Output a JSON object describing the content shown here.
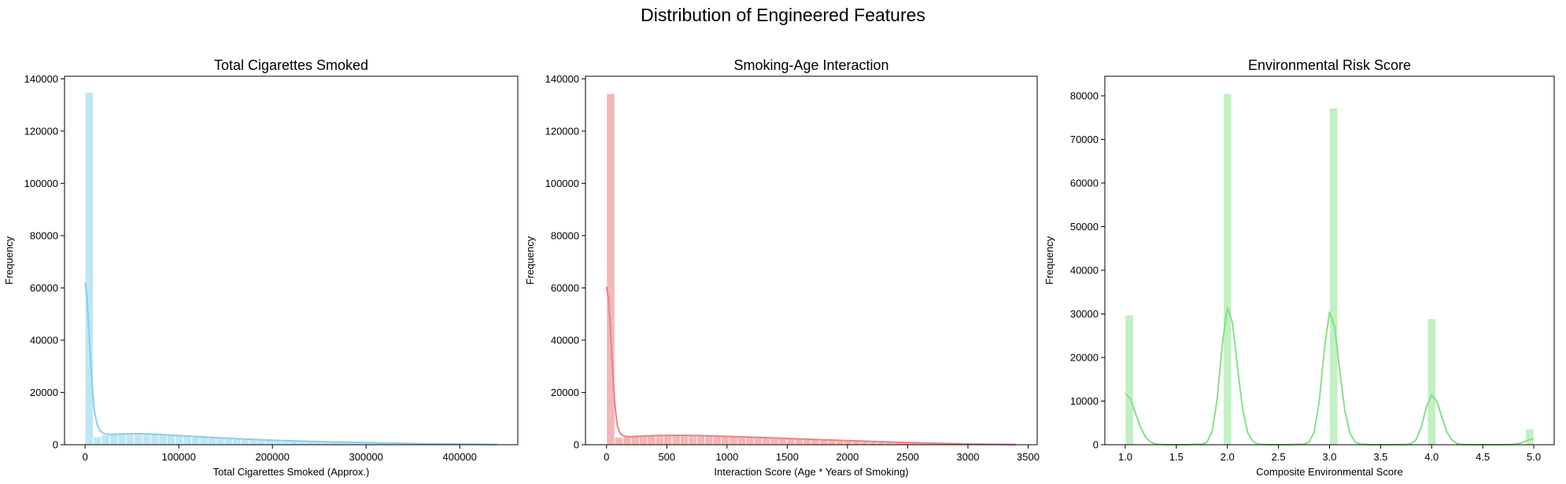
{
  "figure_title": "Distribution of Engineered Features",
  "chart_data": [
    {
      "type": "bar",
      "subtype": "histogram_with_kde",
      "title": "Total Cigarettes Smoked",
      "xlabel": "Total Cigarettes Smoked (Approx.)",
      "ylabel": "Frequency",
      "xlim": [
        -22000,
        462000
      ],
      "ylim": [
        0,
        141000
      ],
      "xticks": [
        0,
        100000,
        200000,
        300000,
        400000
      ],
      "yticks": [
        0,
        20000,
        40000,
        60000,
        80000,
        100000,
        120000,
        140000
      ],
      "bar_color": "#bfe6f2",
      "kde_color": "#87ceeb",
      "bin_start": 0,
      "bin_width": 8750,
      "values": [
        134800,
        3000,
        3800,
        4100,
        4200,
        4200,
        4200,
        4100,
        4000,
        3900,
        3700,
        3600,
        3400,
        3300,
        3100,
        3000,
        2800,
        2700,
        2500,
        2400,
        2300,
        2100,
        2000,
        1900,
        1800,
        1700,
        1600,
        1500,
        1400,
        1300,
        1200,
        1100,
        1000,
        950,
        880,
        800,
        720,
        650,
        580,
        500,
        430,
        360,
        300,
        240,
        180,
        130,
        90,
        60,
        30,
        15
      ],
      "kde": {
        "x": [
          0,
          2000,
          4000,
          6000,
          8000,
          10000,
          13000,
          16000,
          20000,
          25000,
          30000,
          40000,
          50000,
          60000,
          70000,
          80000,
          100000,
          120000,
          140000,
          160000,
          180000,
          200000,
          240000,
          280000,
          320000,
          360000,
          400000,
          440000
        ],
        "y": [
          62000,
          56000,
          44000,
          31000,
          20000,
          12500,
          7500,
          5200,
          4300,
          4000,
          4000,
          4100,
          4200,
          4200,
          4100,
          3900,
          3500,
          3100,
          2700,
          2300,
          2000,
          1700,
          1300,
          950,
          650,
          400,
          200,
          80
        ]
      }
    },
    {
      "type": "bar",
      "subtype": "histogram_with_kde",
      "title": "Smoking-Age Interaction",
      "xlabel": "Interaction Score (Age * Years of Smoking)",
      "ylabel": "Frequency",
      "xlim": [
        -175,
        3575
      ],
      "ylim": [
        0,
        141000
      ],
      "xticks": [
        0,
        500,
        1000,
        1500,
        2000,
        2500,
        3000,
        3500
      ],
      "yticks": [
        0,
        20000,
        40000,
        60000,
        80000,
        100000,
        120000,
        140000
      ],
      "bar_color": "#f4b6b6",
      "kde_color": "#f08080",
      "bin_start": 0,
      "bin_width": 68,
      "values": [
        134300,
        2900,
        3200,
        3400,
        3500,
        3600,
        3600,
        3600,
        3600,
        3600,
        3500,
        3500,
        3400,
        3300,
        3200,
        3100,
        3000,
        2900,
        2800,
        2700,
        2500,
        2400,
        2300,
        2200,
        2000,
        1900,
        1800,
        1700,
        1600,
        1500,
        1400,
        1300,
        1200,
        1100,
        1000,
        900,
        800,
        720,
        640,
        560,
        480,
        400,
        330,
        260,
        200,
        150,
        110,
        80,
        50,
        25
      ],
      "kde": {
        "x": [
          0,
          15,
          30,
          45,
          60,
          75,
          90,
          110,
          130,
          160,
          200,
          300,
          400,
          600,
          800,
          1000,
          1200,
          1500,
          1800,
          2100,
          2400,
          2700,
          3000,
          3200,
          3400
        ],
        "y": [
          60500,
          56000,
          46000,
          33000,
          21000,
          12500,
          7200,
          4600,
          3600,
          3200,
          3100,
          3300,
          3500,
          3600,
          3500,
          3200,
          2900,
          2400,
          1900,
          1400,
          950,
          600,
          300,
          150,
          60
        ]
      }
    },
    {
      "type": "bar",
      "subtype": "histogram_with_kde",
      "title": "Environmental Risk Score",
      "xlabel": "Composite Environmental Score",
      "ylabel": "Frequency",
      "xlim": [
        0.8,
        5.2
      ],
      "ylim": [
        0,
        84500
      ],
      "xticks": [
        1.0,
        1.5,
        2.0,
        2.5,
        3.0,
        3.5,
        4.0,
        4.5,
        5.0
      ],
      "yticks": [
        0,
        10000,
        20000,
        30000,
        40000,
        50000,
        60000,
        70000,
        80000
      ],
      "bar_color": "#c2f0c2",
      "kde_color": "#86e086",
      "bin_start": 1.0,
      "bin_width": 0.08,
      "values": [
        29700,
        0,
        0,
        0,
        0,
        0,
        0,
        0,
        0,
        0,
        0,
        0,
        80500,
        0,
        0,
        0,
        0,
        0,
        0,
        0,
        0,
        0,
        0,
        0,
        0,
        77200,
        0,
        0,
        0,
        0,
        0,
        0,
        0,
        0,
        0,
        0,
        0,
        28900,
        0,
        0,
        0,
        0,
        0,
        0,
        0,
        0,
        0,
        0,
        0,
        3600
      ],
      "kde": {
        "x": [
          1.0,
          1.05,
          1.1,
          1.15,
          1.2,
          1.25,
          1.3,
          1.4,
          1.6,
          1.75,
          1.8,
          1.85,
          1.9,
          1.95,
          2.0,
          2.05,
          2.1,
          2.15,
          2.2,
          2.25,
          2.3,
          2.4,
          2.6,
          2.75,
          2.8,
          2.85,
          2.9,
          2.95,
          3.0,
          3.05,
          3.1,
          3.15,
          3.2,
          3.25,
          3.3,
          3.4,
          3.6,
          3.75,
          3.8,
          3.85,
          3.9,
          3.95,
          4.0,
          4.05,
          4.1,
          4.15,
          4.2,
          4.25,
          4.3,
          4.4,
          4.6,
          4.75,
          4.8,
          4.85,
          4.9,
          4.95,
          5.0
        ],
        "y": [
          11800,
          10500,
          7200,
          4000,
          1700,
          600,
          150,
          0,
          0,
          150,
          600,
          3000,
          10500,
          23000,
          31500,
          28000,
          17500,
          8000,
          2700,
          700,
          150,
          0,
          0,
          150,
          600,
          2900,
          10000,
          22000,
          30500,
          27000,
          17000,
          7700,
          2600,
          650,
          140,
          0,
          0,
          60,
          250,
          1200,
          4200,
          8800,
          11400,
          10000,
          6300,
          2900,
          1000,
          250,
          50,
          0,
          0,
          20,
          80,
          250,
          600,
          1100,
          1500
        ]
      }
    }
  ]
}
